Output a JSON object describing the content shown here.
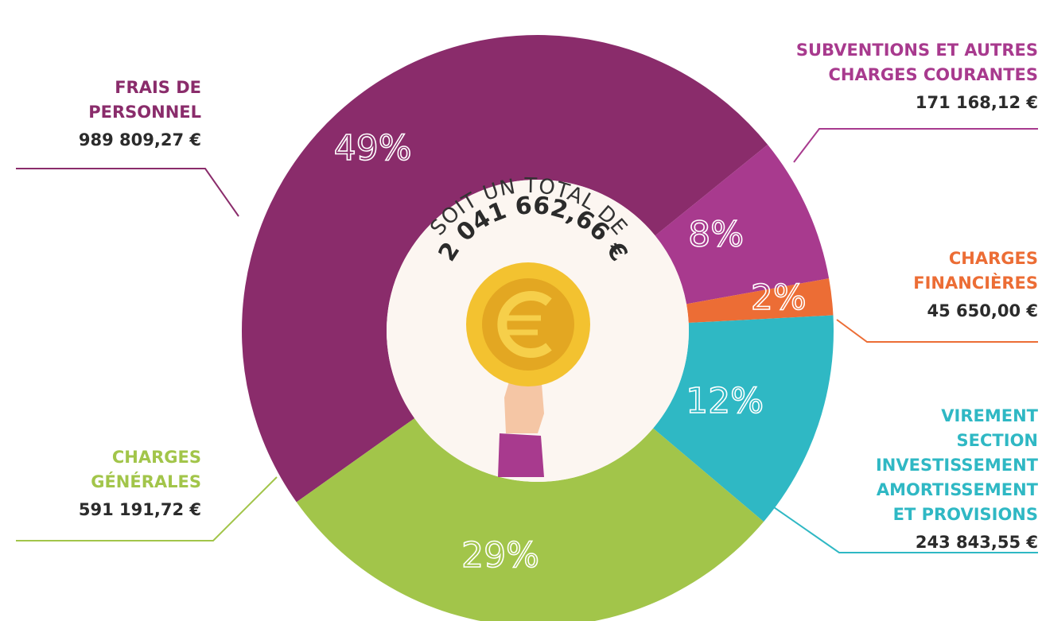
{
  "chart_data": {
    "type": "pie",
    "categories": [
      "FRAIS DE\nPERSONNEL",
      "SUBVENTIONS ET AUTRES\nCHARGES COURANTES",
      "CHARGES\nFINANCIÈRES",
      "VIREMENT\nSECTION\nINVESTISSEMENT\nAMORTISSEMENT\nET PROVISIONS",
      "CHARGES\nGÉNÉRALES"
    ],
    "values": [
      49,
      8,
      2,
      12,
      29
    ],
    "value_labels": [
      "49%",
      "8%",
      "2%",
      "12%",
      "29%"
    ],
    "amounts": [
      "989 809,27 €",
      "171 168,12 €",
      "45 650,00 €",
      "243 843,55 €",
      "591 191,72 €"
    ],
    "colors": [
      "#8a2c6b",
      "#a83a8e",
      "#ec6d35",
      "#2fb8c4",
      "#a2c54a"
    ]
  },
  "center": {
    "caption": "SOIT UN TOTAL DE",
    "total": "2 041 662,66 €"
  }
}
